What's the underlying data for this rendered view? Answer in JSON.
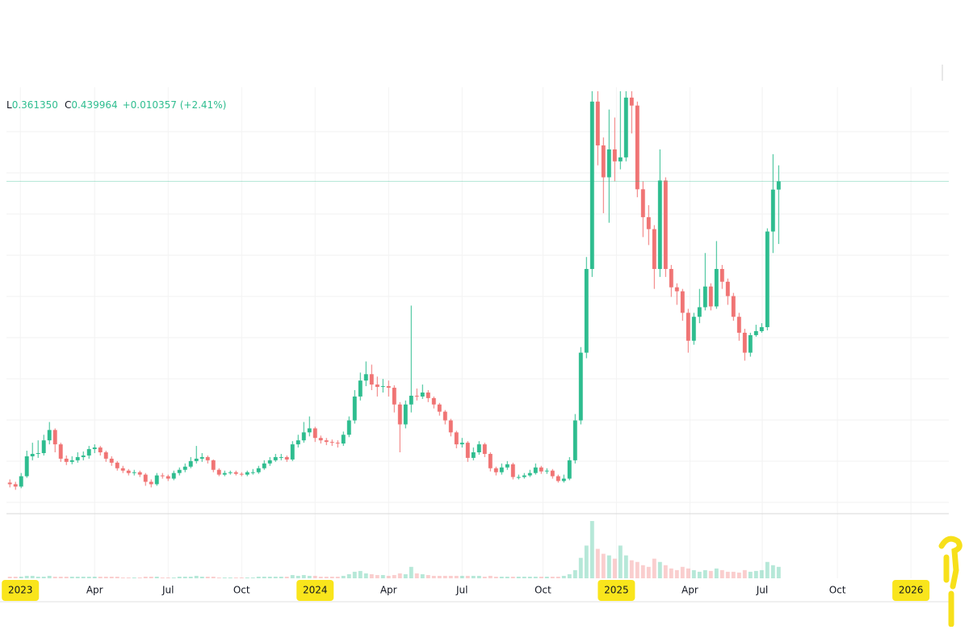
{
  "chart_data": {
    "type": "candlestick",
    "ohlc_legend": {
      "low_label": "L",
      "low": "0.361350",
      "close_label": "C",
      "close": "0.439964",
      "change": "+0.010357 (+2.41%)"
    },
    "up_color": "#2ebd8f",
    "down_color": "#f07474",
    "grid": true,
    "xlim": [
      -0.6,
      166.1
    ],
    "ylim": [
      0.024,
      0.558
    ],
    "vlim": [
      0,
      75
    ],
    "xticks": [
      {
        "value": 1.86,
        "label": "2023",
        "highlight": true
      },
      {
        "value": 15,
        "label": "Apr"
      },
      {
        "value": 28,
        "label": "Jul"
      },
      {
        "value": 41,
        "label": "Oct"
      },
      {
        "value": 54,
        "label": "2024",
        "highlight": true
      },
      {
        "value": 67,
        "label": "Apr"
      },
      {
        "value": 80,
        "label": "Jul"
      },
      {
        "value": 94.3,
        "label": "Oct"
      },
      {
        "value": 107.3,
        "label": "2025",
        "highlight": true
      },
      {
        "value": 120.3,
        "label": "Apr"
      },
      {
        "value": 133.1,
        "label": "Jul"
      },
      {
        "value": 146.4,
        "label": "Oct"
      },
      {
        "value": 159.4,
        "label": "2026",
        "highlight": true
      }
    ],
    "open": [
      0.062,
      0.06,
      0.057,
      0.07,
      0.095,
      0.098,
      0.099,
      0.115,
      0.128,
      0.11,
      0.092,
      0.088,
      0.09,
      0.094,
      0.096,
      0.104,
      0.106,
      0.1,
      0.092,
      0.087,
      0.08,
      0.077,
      0.074,
      0.075,
      0.072,
      0.063,
      0.06,
      0.071,
      0.07,
      0.067,
      0.074,
      0.078,
      0.082,
      0.089,
      0.092,
      0.094,
      0.09,
      0.078,
      0.072,
      0.074,
      0.075,
      0.073,
      0.072,
      0.075,
      0.075,
      0.08,
      0.086,
      0.09,
      0.094,
      0.094,
      0.091,
      0.11,
      0.115,
      0.125,
      0.13,
      0.118,
      0.115,
      0.113,
      0.112,
      0.111,
      0.122,
      0.14,
      0.17,
      0.19,
      0.198,
      0.185,
      0.182,
      0.183,
      0.181,
      0.16,
      0.135,
      0.16,
      0.171,
      0.17,
      0.175,
      0.168,
      0.16,
      0.151,
      0.14,
      0.125,
      0.11,
      0.112,
      0.093,
      0.1,
      0.11,
      0.098,
      0.08,
      0.075,
      0.081,
      0.085,
      0.069,
      0.069,
      0.071,
      0.074,
      0.081,
      0.076,
      0.077,
      0.07,
      0.064,
      0.067,
      0.09,
      0.14,
      0.225,
      0.33,
      0.54,
      0.485,
      0.445,
      0.48,
      0.465,
      0.47,
      0.545,
      0.535,
      0.43,
      0.395,
      0.38,
      0.33,
      0.441,
      0.33,
      0.307,
      0.302,
      0.275,
      0.24,
      0.27,
      0.282,
      0.308,
      0.283,
      0.33,
      0.314,
      0.296,
      0.27,
      0.25,
      0.225,
      0.247,
      0.252,
      0.257,
      0.377,
      0.429607
    ],
    "high": [
      0.066,
      0.063,
      0.074,
      0.102,
      0.112,
      0.115,
      0.122,
      0.138,
      0.13,
      0.112,
      0.096,
      0.095,
      0.1,
      0.101,
      0.108,
      0.11,
      0.108,
      0.102,
      0.095,
      0.089,
      0.083,
      0.079,
      0.078,
      0.077,
      0.074,
      0.066,
      0.074,
      0.074,
      0.072,
      0.077,
      0.081,
      0.086,
      0.094,
      0.108,
      0.099,
      0.096,
      0.091,
      0.08,
      0.077,
      0.077,
      0.077,
      0.075,
      0.077,
      0.079,
      0.083,
      0.09,
      0.094,
      0.098,
      0.098,
      0.096,
      0.114,
      0.122,
      0.138,
      0.145,
      0.132,
      0.121,
      0.118,
      0.116,
      0.115,
      0.126,
      0.145,
      0.178,
      0.2,
      0.214,
      0.21,
      0.195,
      0.192,
      0.19,
      0.184,
      0.163,
      0.165,
      0.284,
      0.18,
      0.185,
      0.178,
      0.17,
      0.162,
      0.153,
      0.142,
      0.127,
      0.118,
      0.114,
      0.106,
      0.114,
      0.112,
      0.1,
      0.082,
      0.086,
      0.089,
      0.087,
      0.072,
      0.074,
      0.078,
      0.086,
      0.083,
      0.08,
      0.079,
      0.072,
      0.072,
      0.094,
      0.148,
      0.232,
      0.345,
      0.553,
      0.553,
      0.495,
      0.53,
      0.52,
      0.553,
      0.553,
      0.553,
      0.54,
      0.44,
      0.41,
      0.385,
      0.48,
      0.445,
      0.335,
      0.312,
      0.305,
      0.28,
      0.275,
      0.305,
      0.35,
      0.312,
      0.365,
      0.335,
      0.318,
      0.3,
      0.275,
      0.255,
      0.25,
      0.26,
      0.262,
      0.381,
      0.474,
      0.46
    ],
    "low": [
      0.056,
      0.053,
      0.055,
      0.068,
      0.09,
      0.093,
      0.096,
      0.11,
      0.1,
      0.088,
      0.084,
      0.085,
      0.087,
      0.09,
      0.092,
      0.099,
      0.096,
      0.088,
      0.083,
      0.077,
      0.074,
      0.071,
      0.071,
      0.069,
      0.058,
      0.056,
      0.058,
      0.067,
      0.064,
      0.065,
      0.071,
      0.075,
      0.08,
      0.086,
      0.088,
      0.086,
      0.075,
      0.07,
      0.07,
      0.072,
      0.071,
      0.07,
      0.07,
      0.072,
      0.073,
      0.078,
      0.083,
      0.088,
      0.09,
      0.088,
      0.089,
      0.106,
      0.112,
      0.12,
      0.113,
      0.111,
      0.109,
      0.108,
      0.106,
      0.108,
      0.119,
      0.136,
      0.165,
      0.183,
      0.178,
      0.17,
      0.175,
      0.17,
      0.15,
      0.1,
      0.13,
      0.15,
      0.165,
      0.167,
      0.163,
      0.155,
      0.146,
      0.135,
      0.12,
      0.105,
      0.106,
      0.088,
      0.09,
      0.097,
      0.094,
      0.076,
      0.071,
      0.072,
      0.078,
      0.066,
      0.066,
      0.067,
      0.069,
      0.072,
      0.073,
      0.073,
      0.067,
      0.062,
      0.062,
      0.065,
      0.086,
      0.135,
      0.218,
      0.32,
      0.46,
      0.4,
      0.388,
      0.44,
      0.455,
      0.465,
      0.5,
      0.42,
      0.37,
      0.36,
      0.305,
      0.32,
      0.32,
      0.295,
      0.285,
      0.265,
      0.225,
      0.235,
      0.262,
      0.278,
      0.278,
      0.28,
      0.305,
      0.285,
      0.265,
      0.24,
      0.215,
      0.22,
      0.245,
      0.25,
      0.253,
      0.35,
      0.36135
    ],
    "close": [
      0.06,
      0.057,
      0.07,
      0.095,
      0.098,
      0.099,
      0.115,
      0.128,
      0.11,
      0.092,
      0.088,
      0.09,
      0.094,
      0.096,
      0.104,
      0.106,
      0.1,
      0.092,
      0.087,
      0.08,
      0.077,
      0.074,
      0.075,
      0.072,
      0.063,
      0.06,
      0.071,
      0.07,
      0.067,
      0.074,
      0.078,
      0.082,
      0.089,
      0.092,
      0.094,
      0.09,
      0.078,
      0.072,
      0.074,
      0.075,
      0.073,
      0.072,
      0.075,
      0.075,
      0.08,
      0.086,
      0.09,
      0.094,
      0.094,
      0.091,
      0.11,
      0.115,
      0.125,
      0.13,
      0.118,
      0.115,
      0.113,
      0.112,
      0.111,
      0.122,
      0.14,
      0.17,
      0.19,
      0.198,
      0.185,
      0.182,
      0.183,
      0.181,
      0.16,
      0.135,
      0.16,
      0.171,
      0.17,
      0.175,
      0.168,
      0.16,
      0.151,
      0.14,
      0.125,
      0.11,
      0.112,
      0.093,
      0.1,
      0.11,
      0.098,
      0.08,
      0.075,
      0.081,
      0.085,
      0.069,
      0.069,
      0.071,
      0.074,
      0.081,
      0.076,
      0.077,
      0.07,
      0.064,
      0.067,
      0.09,
      0.14,
      0.225,
      0.33,
      0.54,
      0.485,
      0.445,
      0.48,
      0.465,
      0.47,
      0.545,
      0.535,
      0.43,
      0.395,
      0.38,
      0.33,
      0.441,
      0.33,
      0.307,
      0.302,
      0.275,
      0.24,
      0.27,
      0.282,
      0.308,
      0.283,
      0.33,
      0.314,
      0.296,
      0.27,
      0.25,
      0.225,
      0.247,
      0.252,
      0.257,
      0.377,
      0.429607,
      0.439964
    ],
    "volume": [
      2,
      2,
      2,
      3,
      3,
      2,
      2,
      3,
      2,
      2,
      2,
      2,
      2,
      2,
      2,
      2,
      2,
      2,
      2,
      2,
      1,
      1,
      1,
      1,
      2,
      2,
      2,
      1,
      1,
      1,
      2,
      2,
      2,
      3,
      2,
      2,
      2,
      1,
      1,
      1,
      1,
      1,
      1,
      1,
      2,
      2,
      2,
      2,
      2,
      2,
      4,
      3,
      4,
      3,
      3,
      2,
      2,
      2,
      2,
      3,
      5,
      8,
      9,
      6,
      5,
      4,
      4,
      3,
      4,
      6,
      5,
      14,
      6,
      5,
      4,
      3,
      3,
      3,
      3,
      3,
      3,
      3,
      3,
      3,
      2,
      3,
      2,
      2,
      2,
      2,
      2,
      2,
      2,
      2,
      2,
      2,
      2,
      2,
      3,
      5,
      10,
      25,
      40,
      70,
      36,
      30,
      28,
      24,
      40,
      28,
      22,
      20,
      16,
      14,
      24,
      20,
      16,
      12,
      10,
      14,
      12,
      10,
      8,
      10,
      9,
      12,
      10,
      8,
      8,
      7,
      10,
      8,
      9,
      10,
      20,
      16,
      14
    ]
  }
}
